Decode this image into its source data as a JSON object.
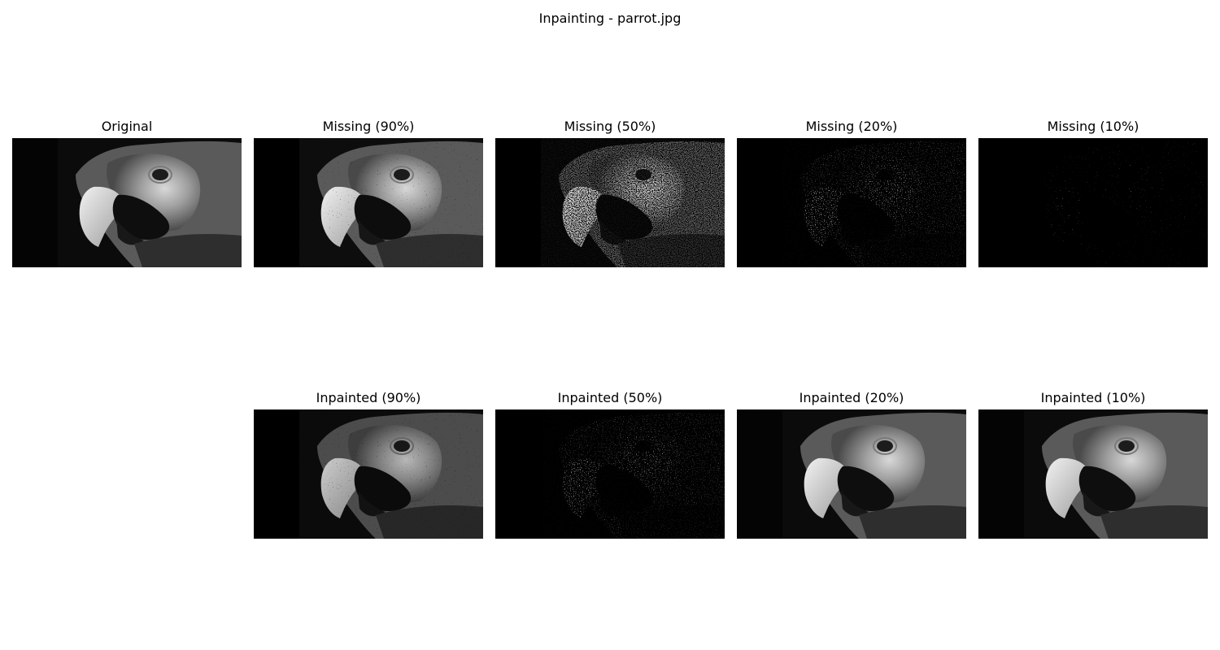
{
  "figure": {
    "title": "Inpainting - parrot.jpg"
  },
  "panels": {
    "original": {
      "title": "Original",
      "missing_fraction": 0
    },
    "missing_90": {
      "title": "Missing (90%)",
      "missing_fraction": 0.9
    },
    "missing_50": {
      "title": "Missing (50%)",
      "missing_fraction": 0.5
    },
    "missing_20": {
      "title": "Missing (20%)",
      "missing_fraction": 0.2
    },
    "missing_10": {
      "title": "Missing (10%)",
      "missing_fraction": 0.1
    },
    "inpainted_90": {
      "title": "Inpainted (90%)",
      "missing_fraction": 0.9
    },
    "inpainted_50": {
      "title": "Inpainted (50%)",
      "missing_fraction": 0.5
    },
    "inpainted_20": {
      "title": "Inpainted (20%)",
      "missing_fraction": 0.2
    },
    "inpainted_10": {
      "title": "Inpainted (10%)",
      "missing_fraction": 0.1
    }
  }
}
